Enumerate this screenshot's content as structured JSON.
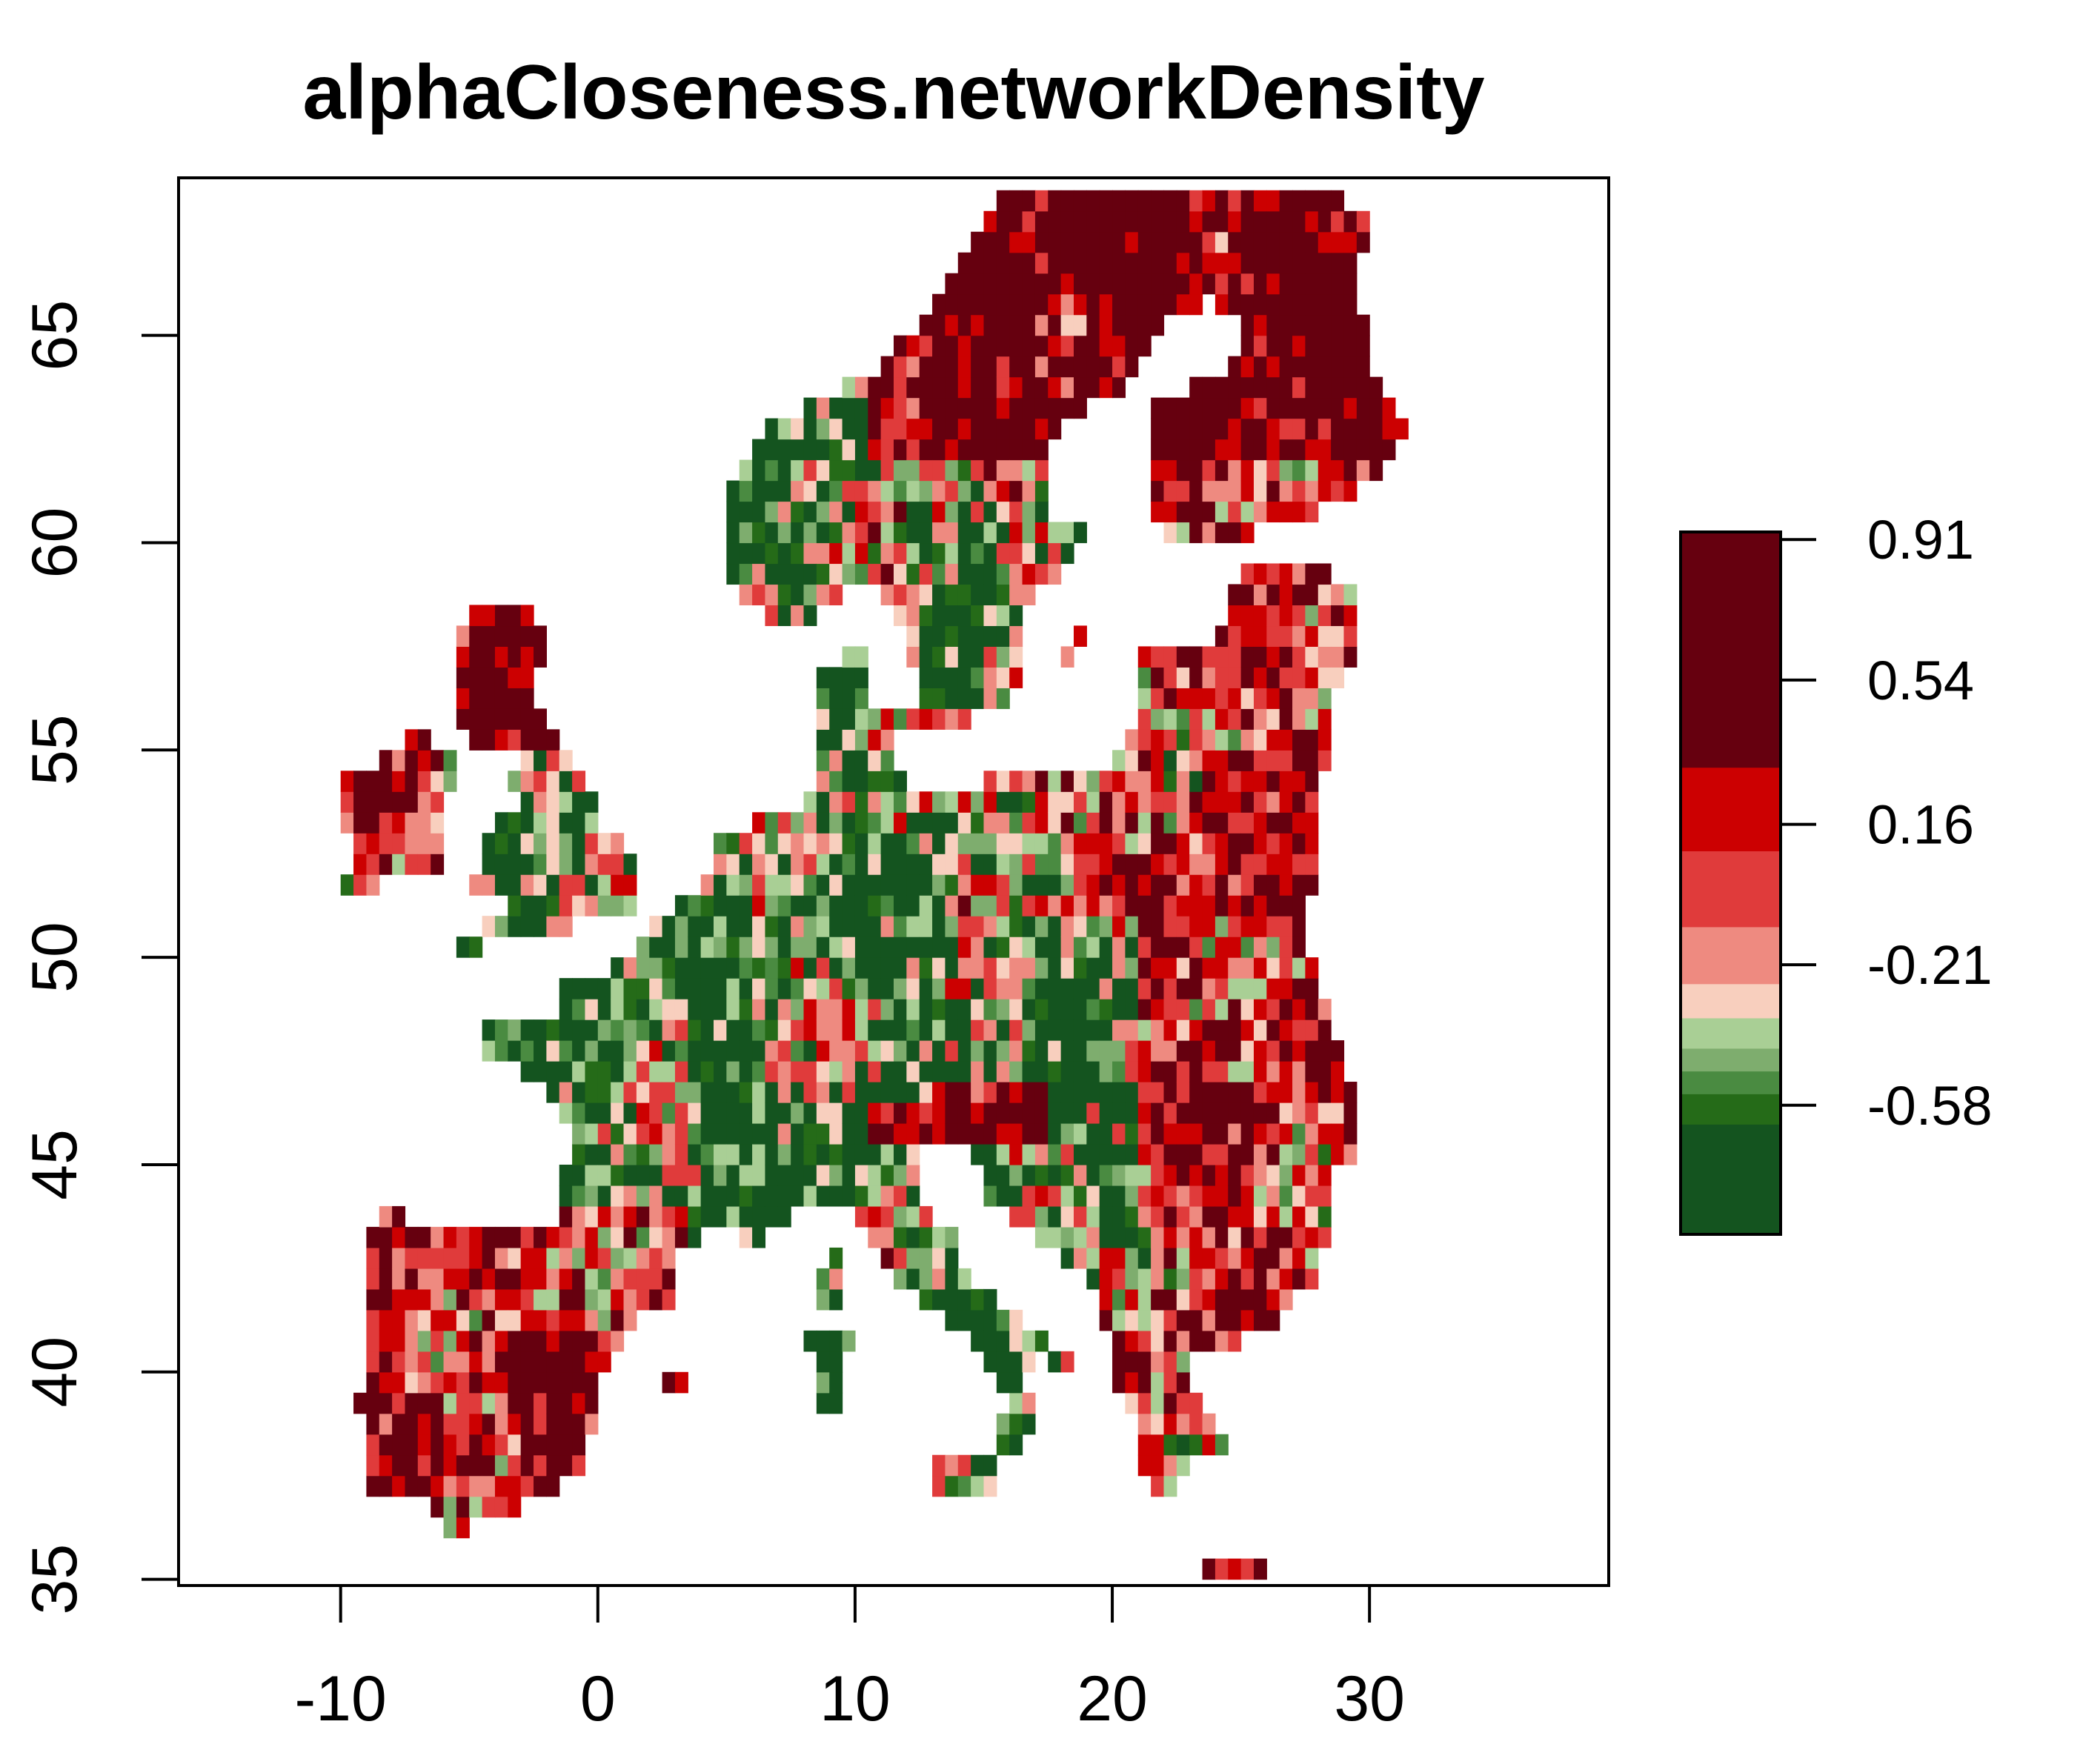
{
  "chart_data": {
    "type": "heatmap",
    "title": "alphaCloseness.networkDensity",
    "xlabel": "",
    "ylabel": "",
    "xlim": [
      -16.3,
      39.3
    ],
    "ylim": [
      34.85,
      68.8
    ],
    "x_ticks": [
      -10,
      0,
      10,
      20,
      30
    ],
    "x_tick_labels": [
      "-10",
      "0",
      "10",
      "20",
      "30"
    ],
    "y_ticks": [
      35,
      40,
      45,
      50,
      55,
      60,
      65
    ],
    "y_tick_labels": [
      "35",
      "40",
      "45",
      "50",
      "55",
      "60",
      "65"
    ],
    "grid": false,
    "legend": {
      "placement": "right",
      "type": "colorbar",
      "range": [
        -0.92,
        0.93
      ],
      "ticks": [
        0.91,
        0.54,
        0.16,
        -0.21,
        -0.58
      ],
      "tick_labels": [
        "0.91",
        "0.54",
        "0.16",
        "-0.21",
        "-0.58"
      ],
      "bands": [
        {
          "from": -0.92,
          "to": -0.63,
          "color": "#14541f"
        },
        {
          "from": -0.63,
          "to": -0.55,
          "color": "#256b18"
        },
        {
          "from": -0.55,
          "to": -0.49,
          "color": "#4a8b41"
        },
        {
          "from": -0.49,
          "to": -0.43,
          "color": "#7ead6e"
        },
        {
          "from": -0.43,
          "to": -0.35,
          "color": "#a9cf95"
        },
        {
          "from": -0.35,
          "to": -0.26,
          "color": "#f8cfbe"
        },
        {
          "from": -0.26,
          "to": -0.11,
          "color": "#ee8a80"
        },
        {
          "from": -0.11,
          "to": 0.09,
          "color": "#e03b3b"
        },
        {
          "from": 0.09,
          "to": 0.31,
          "color": "#cc0001"
        },
        {
          "from": 0.31,
          "to": 0.93,
          "color": "#66000f"
        }
      ]
    },
    "description_of_data": "Gridded raster of values over Europe (approx. 0.5 degree cells); west/central Europe predominantly low (green, about -0.6), Iberia, British Isles, Scandinavia, Finland, Baltics, Eastern Europe, Balkans predominantly high (red, 0.2 to 0.9)."
  },
  "colors": {
    "frame": "#000000",
    "background": "#ffffff"
  }
}
